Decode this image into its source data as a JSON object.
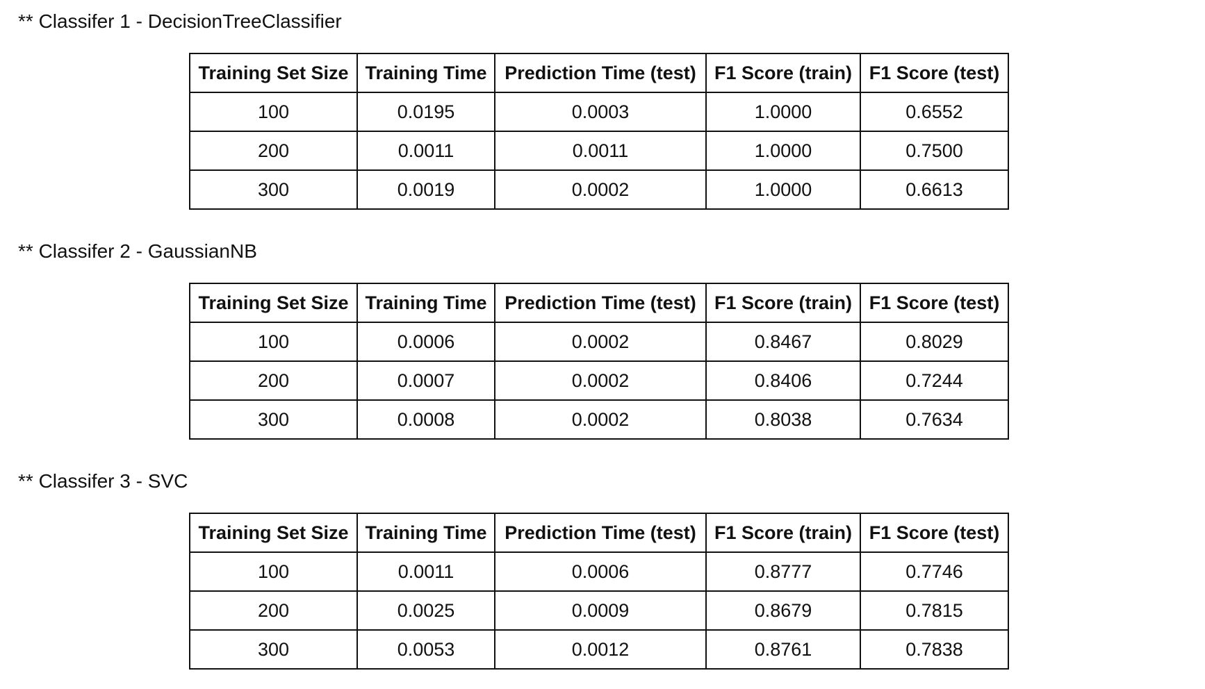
{
  "columns": [
    "Training Set Size",
    "Training Time",
    "Prediction Time (test)",
    "F1 Score (train)",
    "F1 Score (test)"
  ],
  "sections": [
    {
      "title": "** Classifer 1 - DecisionTreeClassifier",
      "rows": [
        [
          "100",
          "0.0195",
          "0.0003",
          "1.0000",
          "0.6552"
        ],
        [
          "200",
          "0.0011",
          "0.0011",
          "1.0000",
          "0.7500"
        ],
        [
          "300",
          "0.0019",
          "0.0002",
          "1.0000",
          "0.6613"
        ]
      ]
    },
    {
      "title": "** Classifer 2 - GaussianNB",
      "rows": [
        [
          "100",
          "0.0006",
          "0.0002",
          "0.8467",
          "0.8029"
        ],
        [
          "200",
          "0.0007",
          "0.0002",
          "0.8406",
          "0.7244"
        ],
        [
          "300",
          "0.0008",
          "0.0002",
          "0.8038",
          "0.7634"
        ]
      ]
    },
    {
      "title": "** Classifer 3 - SVC",
      "rows": [
        [
          "100",
          "0.0011",
          "0.0006",
          "0.8777",
          "0.7746"
        ],
        [
          "200",
          "0.0025",
          "0.0009",
          "0.8679",
          "0.7815"
        ],
        [
          "300",
          "0.0053",
          "0.0012",
          "0.8761",
          "0.7838"
        ]
      ]
    }
  ]
}
